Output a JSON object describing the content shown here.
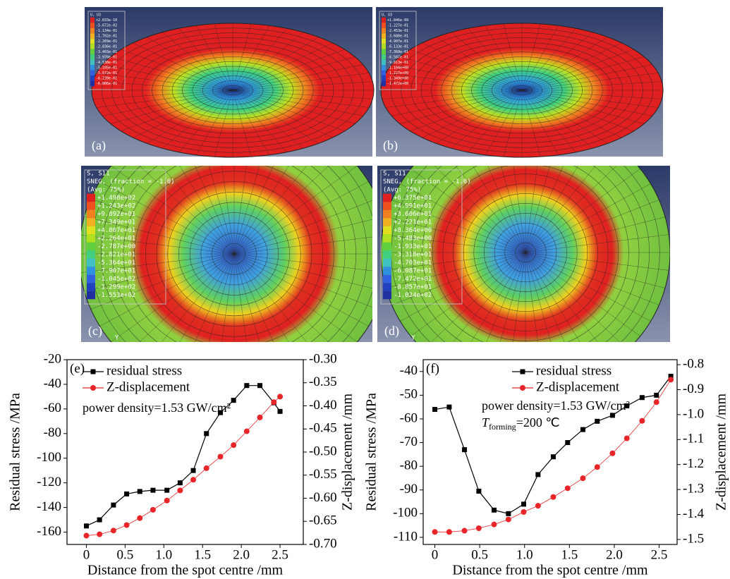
{
  "panels": [
    {
      "label": "(a)",
      "legend_title": [
        "U, U3"
      ],
      "legend_values": [
        "+2.033e-10",
        "-5.672e-02",
        "-1.134e-01",
        "-1.702e-01",
        "-2.269e-01",
        "-2.836e-01",
        "-3.403e-01",
        "-3.970e-01",
        "-4.538e-01",
        "-5.105e-01",
        "-5.672e-01",
        "-6.239e-01",
        "-6.806e-01"
      ]
    },
    {
      "label": "(b)",
      "legend_title": [
        "U, U3"
      ],
      "legend_values": [
        "+1.846e-09",
        "-1.227e-01",
        "-2.453e-01",
        "-3.680e-01",
        "-4.907e-01",
        "-6.133e-01",
        "-7.360e-01",
        "-8.587e-01",
        "-9.813e-01",
        "-1.104e+00",
        "-1.227e+00",
        "-1.349e+00",
        "-1.472e+00"
      ]
    },
    {
      "label": "(c)",
      "axis_label": "Y",
      "legend_title": [
        "S, S11",
        "SNEG, (fraction = -1.0)",
        "(Avg: 75%)"
      ],
      "legend_values": [
        "+1.498e+02",
        "+1.243e+02",
        "+9.892e+01",
        "+7.349e+01",
        "+4.807e+01",
        "+2.264e+01",
        "-2.787e+00",
        "-2.821e+01",
        "-5.364e+01",
        "-7.907e+01",
        "-1.045e+02",
        "-1.299e+02",
        "-1.553e+02"
      ]
    },
    {
      "label": "(d)",
      "axis_label": "Y",
      "legend_title": [
        "S, S11",
        "SNEG, (fraction = -1.0)",
        "(Avg: 75%)"
      ],
      "legend_values": [
        "+6.375e+01",
        "+4.991e+01",
        "+3.606e+01",
        "+2.221e+01",
        "+8.364e+00",
        "-5.483e+00",
        "-1.933e+01",
        "-3.318e+01",
        "-4.703e+01",
        "-6.087e+01",
        "-7.472e+01",
        "-8.857e+01",
        "-1.024e+02"
      ]
    }
  ],
  "chart_data": [
    {
      "type": "line",
      "panel_label": "(e)",
      "annotations": [
        "power density=1.53 GW/cm²"
      ],
      "xlabel": "Distance from the spot centre /mm",
      "ylabel": "Residual stress /MPa",
      "y2label": "Z-displacement /mm",
      "x": [
        0,
        0.17,
        0.35,
        0.52,
        0.69,
        0.86,
        1.04,
        1.21,
        1.38,
        1.55,
        1.73,
        1.9,
        2.07,
        2.24,
        2.42,
        2.5
      ],
      "series": [
        {
          "name": "residual stress",
          "color": "#000000",
          "marker": "square",
          "values": [
            -155,
            -150,
            -138,
            -129,
            -127,
            -126,
            -126,
            -120,
            -110,
            -80,
            -63,
            -53,
            -41,
            -41,
            -55,
            -62
          ]
        },
        {
          "name": "Z-displacement",
          "color": "#e8262a",
          "marker": "circle",
          "axis": "y2",
          "values": [
            -0.681,
            -0.678,
            -0.67,
            -0.658,
            -0.643,
            -0.625,
            -0.605,
            -0.583,
            -0.56,
            -0.535,
            -0.51,
            -0.485,
            -0.455,
            -0.425,
            -0.392,
            -0.38
          ]
        }
      ],
      "xlim": [
        -0.25,
        2.8
      ],
      "xticks": [
        {
          "value": 0,
          "label": "0"
        },
        0.5,
        {
          "value": 1,
          "label": "1.0"
        },
        1.5,
        {
          "value": 2,
          "label": "2.0"
        },
        2.5
      ],
      "ylim": [
        -170,
        -20
      ],
      "yticks": [
        -160,
        -140,
        -120,
        -100,
        -80,
        -60,
        -40,
        -20
      ],
      "y2lim": [
        -0.7,
        -0.3
      ],
      "y2ticks": [
        {
          "value": -0.7,
          "label": "-0.70"
        },
        -0.65,
        {
          "value": -0.6,
          "label": "-0.60"
        },
        -0.55,
        {
          "value": -0.5,
          "label": "-0.50"
        },
        -0.45,
        {
          "value": -0.4,
          "label": "-0.40"
        },
        -0.35,
        {
          "value": -0.3,
          "label": "-0.30"
        }
      ]
    },
    {
      "type": "line",
      "panel_label": "(f)",
      "annotations": [
        "power density=1.53 GW/cm²",
        "T",
        "forming",
        "=200 ℃"
      ],
      "xlabel": "Distance from the spot centre /mm",
      "ylabel": "Residual stress /MPa",
      "y2label": "Z-displacement /mm",
      "x": [
        0,
        0.16,
        0.33,
        0.49,
        0.66,
        0.82,
        0.99,
        1.15,
        1.32,
        1.48,
        1.65,
        1.81,
        1.98,
        2.14,
        2.31,
        2.47,
        2.63
      ],
      "series": [
        {
          "name": "residual stress",
          "color": "#000000",
          "marker": "square",
          "values": [
            -56,
            -55,
            -73,
            -90.5,
            -98.5,
            -100,
            -96,
            -83.5,
            -76,
            -70,
            -64.5,
            -61,
            -58.5,
            -54.5,
            -51,
            -50,
            -42
          ]
        },
        {
          "name": "Z-displacement",
          "color": "#e8262a",
          "marker": "circle",
          "axis": "y2",
          "values": [
            -1.47,
            -1.47,
            -1.465,
            -1.455,
            -1.44,
            -1.42,
            -1.39,
            -1.365,
            -1.33,
            -1.295,
            -1.255,
            -1.21,
            -1.155,
            -1.095,
            -1.025,
            -0.95,
            -0.86
          ]
        }
      ],
      "xlim": [
        -0.13,
        2.7
      ],
      "xticks": [
        0,
        0.5,
        {
          "value": 1,
          "label": "1.0"
        },
        1.5,
        {
          "value": 2,
          "label": "2.0"
        },
        2.5
      ],
      "ylim": [
        -113,
        -35
      ],
      "yticks": [
        -110,
        -100,
        -90,
        -80,
        -70,
        -60,
        -50,
        -40
      ],
      "y2lim": [
        -1.52,
        -0.78
      ],
      "y2ticks": [
        -1.5,
        -1.4,
        -1.3,
        -1.2,
        -1.1,
        {
          "value": -1,
          "label": "-1.0"
        },
        -0.9,
        -0.8
      ]
    }
  ]
}
